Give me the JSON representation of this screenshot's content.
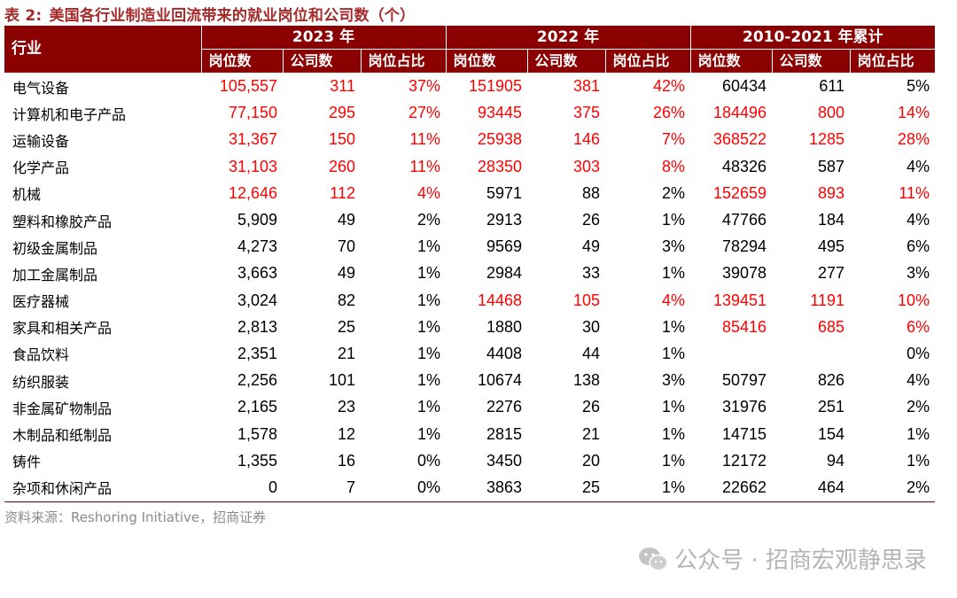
{
  "title": {
    "label": "表 2:",
    "text": "美国各行业制造业回流带来的就业岗位和公司数（个）"
  },
  "header": {
    "industry": "行业",
    "groups": [
      "2023 年",
      "2022 年",
      "2010-2021 年累计"
    ],
    "sub": [
      "岗位数",
      "公司数",
      "岗位占比",
      "岗位数",
      "公司数",
      "岗位占比",
      "岗位数",
      "公司数",
      "岗位占比"
    ]
  },
  "colors": {
    "header_bg": "#8b0000",
    "highlight": "#ff0000",
    "title": "#a52a2a"
  },
  "rows": [
    {
      "name": "电气设备",
      "cells": [
        "105,557",
        "311",
        "37%",
        "151905",
        "381",
        "42%",
        "60434",
        "611",
        "5%"
      ],
      "red": [
        1,
        1,
        1,
        1,
        1,
        1,
        0,
        0,
        0
      ]
    },
    {
      "name": "计算机和电子产品",
      "cells": [
        "77,150",
        "295",
        "27%",
        "93445",
        "375",
        "26%",
        "184496",
        "800",
        "14%"
      ],
      "red": [
        1,
        1,
        1,
        1,
        1,
        1,
        1,
        1,
        1
      ]
    },
    {
      "name": "运输设备",
      "cells": [
        "31,367",
        "150",
        "11%",
        "25938",
        "146",
        "7%",
        "368522",
        "1285",
        "28%"
      ],
      "red": [
        1,
        1,
        1,
        1,
        1,
        1,
        1,
        1,
        1
      ]
    },
    {
      "name": "化学产品",
      "cells": [
        "31,103",
        "260",
        "11%",
        "28350",
        "303",
        "8%",
        "48326",
        "587",
        "4%"
      ],
      "red": [
        1,
        1,
        1,
        1,
        1,
        1,
        0,
        0,
        0
      ]
    },
    {
      "name": "机械",
      "cells": [
        "12,646",
        "112",
        "4%",
        "5971",
        "88",
        "2%",
        "152659",
        "893",
        "11%"
      ],
      "red": [
        1,
        1,
        1,
        0,
        0,
        0,
        1,
        1,
        1
      ]
    },
    {
      "name": "塑料和橡胶产品",
      "cells": [
        "5,909",
        "49",
        "2%",
        "2913",
        "26",
        "1%",
        "47766",
        "184",
        "4%"
      ],
      "red": [
        0,
        0,
        0,
        0,
        0,
        0,
        0,
        0,
        0
      ]
    },
    {
      "name": "初级金属制品",
      "cells": [
        "4,273",
        "70",
        "1%",
        "9569",
        "49",
        "3%",
        "78294",
        "495",
        "6%"
      ],
      "red": [
        0,
        0,
        0,
        0,
        0,
        0,
        0,
        0,
        0
      ]
    },
    {
      "name": "加工金属制品",
      "cells": [
        "3,663",
        "49",
        "1%",
        "2984",
        "33",
        "1%",
        "39078",
        "277",
        "3%"
      ],
      "red": [
        0,
        0,
        0,
        0,
        0,
        0,
        0,
        0,
        0
      ]
    },
    {
      "name": "医疗器械",
      "cells": [
        "3,024",
        "82",
        "1%",
        "14468",
        "105",
        "4%",
        "139451",
        "1191",
        "10%"
      ],
      "red": [
        0,
        0,
        0,
        1,
        1,
        1,
        1,
        1,
        1
      ]
    },
    {
      "name": "家具和相关产品",
      "cells": [
        "2,813",
        "25",
        "1%",
        "1880",
        "30",
        "1%",
        "85416",
        "685",
        "6%"
      ],
      "red": [
        0,
        0,
        0,
        0,
        0,
        0,
        1,
        1,
        1
      ]
    },
    {
      "name": "食品饮料",
      "cells": [
        "2,351",
        "21",
        "1%",
        "4408",
        "44",
        "1%",
        "",
        "",
        "0%"
      ],
      "red": [
        0,
        0,
        0,
        0,
        0,
        0,
        0,
        0,
        0
      ]
    },
    {
      "name": "纺织服装",
      "cells": [
        "2,256",
        "101",
        "1%",
        "10674",
        "138",
        "3%",
        "50797",
        "826",
        "4%"
      ],
      "red": [
        0,
        0,
        0,
        0,
        0,
        0,
        0,
        0,
        0
      ]
    },
    {
      "name": "非金属矿物制品",
      "cells": [
        "2,165",
        "23",
        "1%",
        "2276",
        "26",
        "1%",
        "31976",
        "251",
        "2%"
      ],
      "red": [
        0,
        0,
        0,
        0,
        0,
        0,
        0,
        0,
        0
      ]
    },
    {
      "name": "木制品和纸制品",
      "cells": [
        "1,578",
        "12",
        "1%",
        "2815",
        "21",
        "1%",
        "14715",
        "154",
        "1%"
      ],
      "red": [
        0,
        0,
        0,
        0,
        0,
        0,
        0,
        0,
        0
      ]
    },
    {
      "name": "铸件",
      "cells": [
        "1,355",
        "16",
        "0%",
        "3450",
        "20",
        "1%",
        "12172",
        "94",
        "1%"
      ],
      "red": [
        0,
        0,
        0,
        0,
        0,
        0,
        0,
        0,
        0
      ]
    },
    {
      "name": "杂项和休闲产品",
      "cells": [
        "0",
        "7",
        "0%",
        "3863",
        "25",
        "1%",
        "22662",
        "464",
        "2%"
      ],
      "red": [
        0,
        0,
        0,
        0,
        0,
        0,
        0,
        0,
        0
      ]
    }
  ],
  "source": "资料来源：Reshoring Initiative，招商证券",
  "watermark": {
    "icon": "wechat-icon",
    "text": "公众号 · 招商宏观静思录"
  }
}
